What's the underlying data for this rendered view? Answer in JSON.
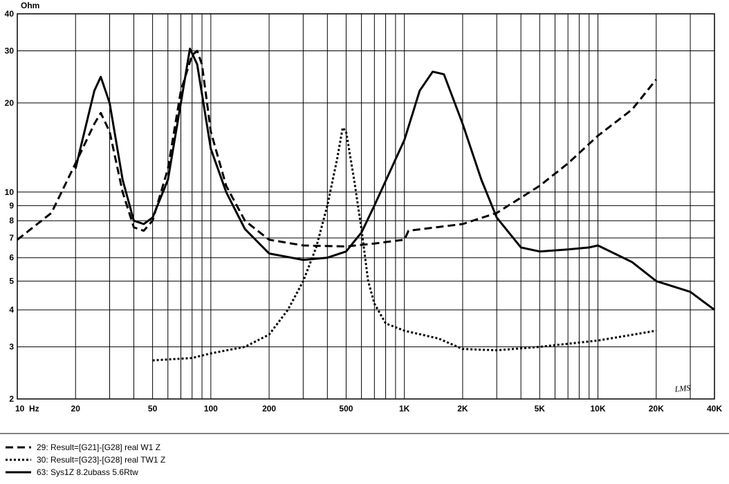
{
  "chart_data": {
    "type": "line",
    "y_label": "Ohm",
    "logo": "LMS",
    "xlog": true,
    "ylog": true,
    "grid": true,
    "xlim": [
      10,
      40000
    ],
    "ylim": [
      2,
      40
    ],
    "xticks": [
      {
        "value": 10,
        "label": "10  Hz"
      },
      20,
      50,
      100,
      200,
      500,
      {
        "value": 1000,
        "label": "1K"
      },
      {
        "value": 2000,
        "label": "2K"
      },
      {
        "value": 5000,
        "label": "5K"
      },
      {
        "value": 10000,
        "label": "10K"
      },
      {
        "value": 20000,
        "label": "20K"
      },
      {
        "value": 40000,
        "label": "40K"
      }
    ],
    "xminorticks": [
      30,
      40,
      60,
      70,
      80,
      90,
      300,
      400,
      600,
      700,
      800,
      900,
      3000,
      4000,
      6000,
      7000,
      8000,
      9000,
      30000
    ],
    "yticks": [
      2,
      3,
      4,
      5,
      6,
      7,
      8,
      9,
      10,
      20,
      30,
      40
    ],
    "series": [
      {
        "name": "29: Result=[G21]-[G28] real W1 Z",
        "color": "#000000",
        "dash": "dashed",
        "x": [
          10,
          15,
          20,
          25,
          27,
          30,
          35,
          40,
          45,
          50,
          60,
          70,
          80,
          85,
          90,
          100,
          120,
          150,
          200,
          300,
          500,
          700,
          1000,
          1050,
          2000,
          3000,
          5000,
          7000,
          10000,
          15000,
          20000
        ],
        "values": [
          6.9,
          8.5,
          12.5,
          17,
          18.5,
          16,
          10,
          7.6,
          7.4,
          8,
          12,
          22,
          29,
          30,
          27,
          16,
          10.5,
          8,
          6.9,
          6.6,
          6.55,
          6.7,
          6.9,
          7.4,
          7.8,
          8.5,
          10.5,
          12.5,
          15.5,
          19,
          24
        ]
      },
      {
        "name": "30: Result=[G23]-[G28] real TW1 Z",
        "color": "#000000",
        "dash": "dotted",
        "x": [
          50,
          80,
          100,
          150,
          200,
          250,
          300,
          350,
          400,
          450,
          480,
          500,
          550,
          600,
          650,
          700,
          800,
          1000,
          1500,
          2000,
          3000,
          5000,
          10000,
          20000
        ],
        "values": [
          2.7,
          2.75,
          2.85,
          3.0,
          3.3,
          4,
          5,
          6.5,
          9,
          13,
          16.5,
          16,
          11,
          7.5,
          5,
          4.2,
          3.6,
          3.4,
          3.2,
          2.95,
          2.92,
          3.0,
          3.15,
          3.4
        ]
      },
      {
        "name": "63: Sys1Z 8.2ubass 5.6Rtw",
        "color": "#000000",
        "dash": "solid",
        "x": [
          20,
          25,
          27,
          30,
          35,
          40,
          45,
          50,
          60,
          70,
          78,
          85,
          100,
          120,
          150,
          200,
          300,
          400,
          500,
          600,
          700,
          1000,
          1200,
          1400,
          1600,
          2000,
          2500,
          3000,
          4000,
          5000,
          7000,
          9000,
          10000,
          15000,
          20000,
          30000,
          40000
        ],
        "values": [
          12,
          22,
          24.5,
          20,
          11,
          8,
          7.8,
          8.2,
          11,
          20,
          30.5,
          27,
          14,
          10,
          7.5,
          6.2,
          5.9,
          6.0,
          6.3,
          7.3,
          9,
          15,
          22,
          25.5,
          25,
          17,
          11,
          8.2,
          6.5,
          6.3,
          6.4,
          6.5,
          6.6,
          5.8,
          5,
          4.6,
          4.0
        ]
      }
    ]
  }
}
